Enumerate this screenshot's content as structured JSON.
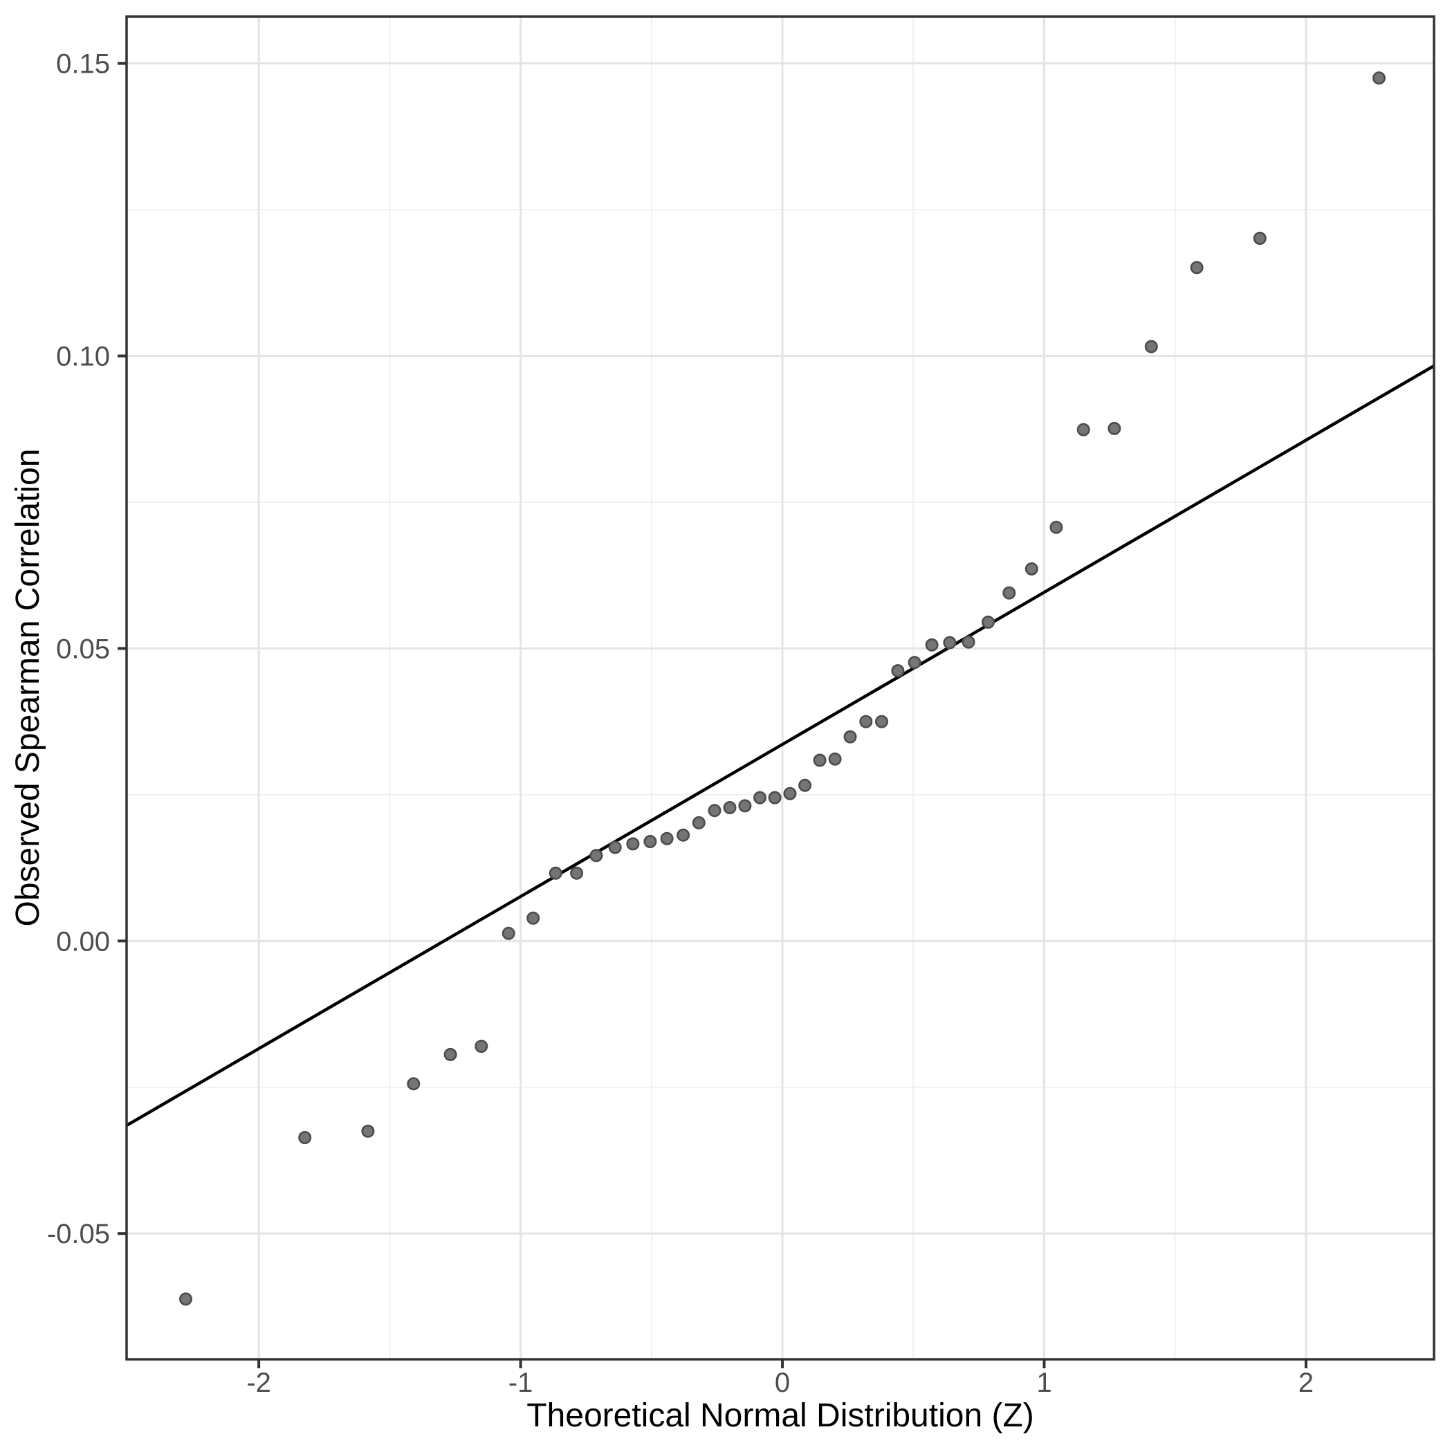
{
  "figure": {
    "kind": "qq-plot",
    "background": "#ffffff"
  },
  "chart_data": {
    "type": "scatter",
    "title": "",
    "xlabel": "Theoretical Normal Distribution (Z)",
    "ylabel": "Observed Spearman Correlation",
    "xlim": [
      -2.505,
      2.489
    ],
    "ylim": [
      -0.0715,
      0.158
    ],
    "grid": "major+minor",
    "legend_position": "none",
    "x_ticks": {
      "values": [
        -2,
        -1,
        0,
        1,
        2
      ],
      "labels": [
        "-2",
        "-1",
        "0",
        "1",
        "2"
      ],
      "minor": [
        -1.5,
        -0.5,
        0.5,
        1.5
      ]
    },
    "y_ticks": {
      "values": [
        -0.05,
        0.0,
        0.05,
        0.1,
        0.15
      ],
      "labels": [
        "-0.05",
        "0.00",
        "0.05",
        "0.10",
        "0.15"
      ],
      "minor": [
        -0.025,
        0.025,
        0.075,
        0.125
      ]
    },
    "series": [
      {
        "name": "observed-spearman-correlation-quantiles",
        "marker": "circle",
        "x": [
          -2.279,
          -1.824,
          -1.583,
          -1.409,
          -1.268,
          -1.15,
          -1.046,
          -0.952,
          -0.866,
          -0.786,
          -0.711,
          -0.639,
          -0.571,
          -0.505,
          -0.441,
          -0.379,
          -0.319,
          -0.259,
          -0.201,
          -0.143,
          -0.086,
          -0.029,
          0.029,
          0.086,
          0.143,
          0.201,
          0.259,
          0.319,
          0.379,
          0.441,
          0.505,
          0.571,
          0.639,
          0.711,
          0.786,
          0.866,
          0.952,
          1.046,
          1.15,
          1.268,
          1.409,
          1.583,
          1.824,
          2.279
        ],
        "y": [
          -0.0612,
          -0.0336,
          -0.0325,
          -0.0244,
          -0.0194,
          -0.018,
          0.0013,
          0.0039,
          0.0116,
          0.0116,
          0.0146,
          0.016,
          0.0166,
          0.017,
          0.0175,
          0.0181,
          0.0202,
          0.0223,
          0.0228,
          0.0231,
          0.0245,
          0.0245,
          0.0252,
          0.0266,
          0.0309,
          0.0311,
          0.0349,
          0.0375,
          0.0375,
          0.0462,
          0.0476,
          0.0506,
          0.051,
          0.0511,
          0.0545,
          0.0595,
          0.0636,
          0.0707,
          0.0874,
          0.0876,
          0.1016,
          0.1151,
          0.1201,
          0.1475
        ]
      }
    ],
    "reference_line": {
      "intercept": 0.0336,
      "slope": 0.026
    },
    "style": {
      "point_fill": "#757575",
      "point_stroke": "#4c4c4c",
      "point_radius": 8.2,
      "point_stroke_width": 2.6,
      "reference_line_color": "#000000",
      "reference_line_width": 4.5,
      "grid_major_color": "#e4e4e4",
      "grid_minor_color": "#efefef",
      "grid_major_width": 3,
      "grid_minor_width": 1.8,
      "panel_border_color": "#333333",
      "panel_border_width": 3.5,
      "tick_color": "#333333",
      "tick_length": 13,
      "tick_width": 4,
      "tick_label_color": "#4d4d4d",
      "axis_title_color": "#000000",
      "panel_background": "#ffffff"
    }
  }
}
